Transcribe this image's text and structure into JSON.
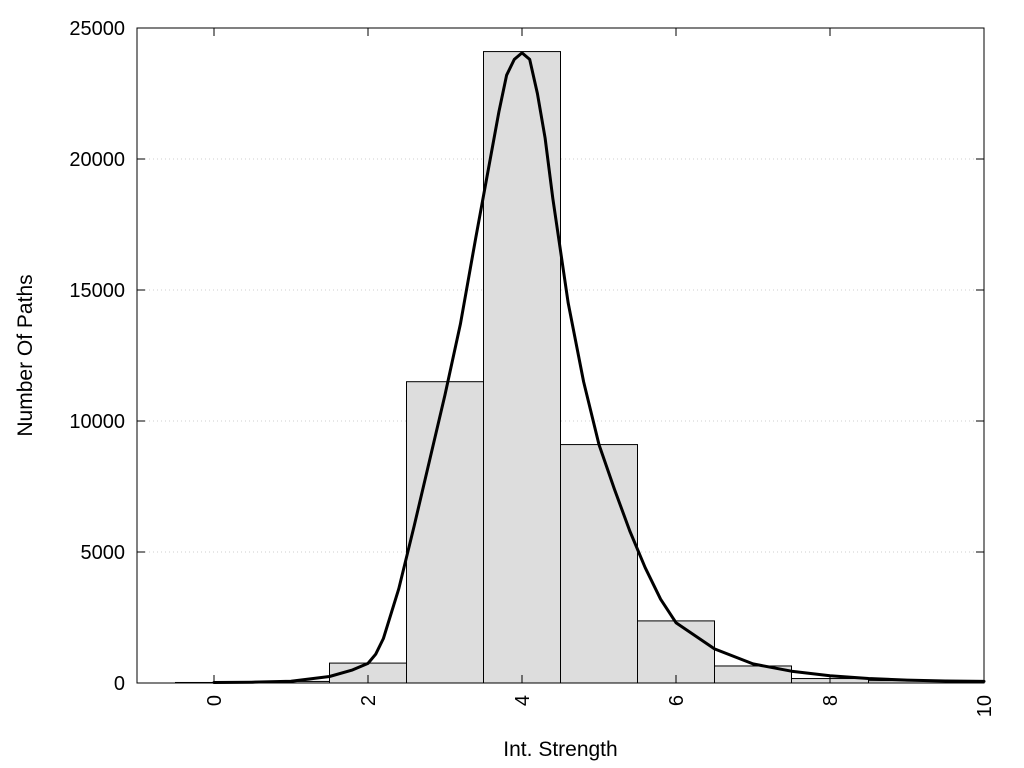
{
  "chart_data": {
    "type": "bar",
    "title": "",
    "xlabel": "Int. Strength",
    "ylabel": "Number Of Paths",
    "xlim": [
      -1,
      10
    ],
    "ylim": [
      0,
      25000
    ],
    "x_ticks": [
      "0",
      "2",
      "4",
      "6",
      "8",
      "10"
    ],
    "y_ticks": [
      "0",
      "5000",
      "10000",
      "15000",
      "20000",
      "25000"
    ],
    "grid": "horizontal dotted",
    "legend": "none",
    "bar_width": 1,
    "bins": [
      {
        "center": 0,
        "value": 20
      },
      {
        "center": 1,
        "value": 60
      },
      {
        "center": 2,
        "value": 760
      },
      {
        "center": 3,
        "value": 11500
      },
      {
        "center": 4,
        "value": 24100
      },
      {
        "center": 5,
        "value": 9100
      },
      {
        "center": 6,
        "value": 2370
      },
      {
        "center": 7,
        "value": 650
      },
      {
        "center": 8,
        "value": 170
      },
      {
        "center": 9,
        "value": 90
      },
      {
        "center": 10,
        "value": 60
      }
    ],
    "fit_curve": {
      "x": [
        0,
        0.5,
        1,
        1.5,
        1.8,
        2,
        2.1,
        2.2,
        2.4,
        2.6,
        2.8,
        3,
        3.2,
        3.4,
        3.6,
        3.7,
        3.8,
        3.9,
        4,
        4.1,
        4.2,
        4.3,
        4.4,
        4.6,
        4.8,
        5,
        5.2,
        5.4,
        5.6,
        5.8,
        6,
        6.5,
        7,
        7.5,
        8,
        8.5,
        9,
        9.5,
        10
      ],
      "y": [
        20,
        30,
        70,
        250,
        500,
        750,
        1100,
        1700,
        3600,
        6000,
        8500,
        11000,
        13700,
        17000,
        20200,
        21800,
        23200,
        23800,
        24050,
        23800,
        22500,
        20800,
        18500,
        14500,
        11500,
        9100,
        7400,
        5800,
        4400,
        3200,
        2300,
        1300,
        730,
        450,
        280,
        170,
        110,
        75,
        60
      ]
    },
    "colors": {
      "bar_fill": "#dddddd",
      "bar_stroke": "#000000",
      "curve": "#000000",
      "grid": "#cfcfcf"
    }
  }
}
